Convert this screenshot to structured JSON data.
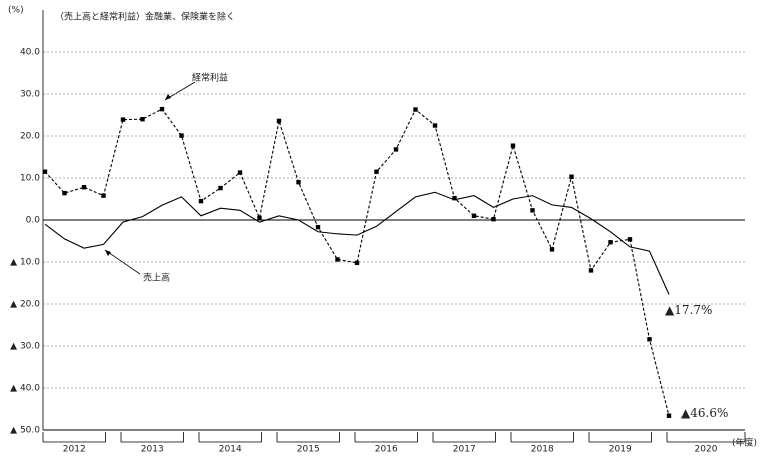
{
  "chart_data": {
    "type": "line",
    "subtitle": "（売上高と経常利益）金融業、保険業を除く",
    "y_unit": "(%)",
    "x_unit": "(年度)",
    "years": [
      "2012",
      "2013",
      "2014",
      "2015",
      "2016",
      "2017",
      "2018",
      "2019",
      "2020"
    ],
    "categories": [
      null,
      null,
      null,
      null,
      null,
      null,
      null,
      null,
      null,
      null,
      null,
      null,
      null,
      null,
      null,
      null,
      null,
      null,
      null,
      null,
      null,
      null,
      null,
      null,
      null,
      null,
      null,
      null,
      null,
      null,
      null,
      null,
      null
    ],
    "series": [
      {
        "name": "売上高",
        "color": "#000000",
        "line_style": "solid",
        "values": [
          -1.0,
          -4.5,
          -6.7,
          -5.8,
          -0.5,
          0.8,
          3.5,
          5.5,
          1.0,
          2.8,
          2.3,
          -0.5,
          1.0,
          0.0,
          -2.8,
          -3.3,
          -3.6,
          -1.5,
          2.0,
          5.5,
          6.6,
          4.8,
          5.8,
          3.0,
          5.0,
          5.8,
          3.6,
          3.0,
          0.3,
          -2.8,
          -6.4,
          -7.4,
          -17.7
        ],
        "value_labels": [
          null,
          null,
          null,
          null,
          null,
          null,
          null,
          null,
          null,
          null,
          null,
          null,
          null,
          null,
          null,
          null,
          null,
          null,
          null,
          null,
          null,
          null,
          null,
          null,
          null,
          null,
          null,
          null,
          null,
          null,
          null,
          null,
          "▲17.7%"
        ]
      },
      {
        "name": "経常利益",
        "color": "#000000",
        "line_style": "dashed",
        "marker": "square",
        "values": [
          11.5,
          6.4,
          7.8,
          5.8,
          23.9,
          24.0,
          26.4,
          20.1,
          4.5,
          7.6,
          11.3,
          0.5,
          23.6,
          9.0,
          -1.7,
          -9.4,
          -10.2,
          11.5,
          16.8,
          26.3,
          22.5,
          5.2,
          1.0,
          0.2,
          17.7,
          2.3,
          -7.0,
          10.3,
          -12.0,
          -5.3,
          -4.6,
          -28.4,
          -46.6
        ],
        "value_labels": [
          null,
          null,
          null,
          null,
          null,
          null,
          null,
          null,
          null,
          null,
          null,
          null,
          null,
          null,
          null,
          null,
          null,
          null,
          null,
          null,
          null,
          null,
          null,
          null,
          null,
          null,
          null,
          null,
          null,
          null,
          null,
          null,
          "▲46.6%"
        ]
      }
    ],
    "ylim": [
      -50,
      50
    ],
    "yticks": [
      {
        "value": 40,
        "label": "40.0"
      },
      {
        "value": 30,
        "label": "30.0"
      },
      {
        "value": 20,
        "label": "20.0"
      },
      {
        "value": 10,
        "label": "10.0"
      },
      {
        "value": 0,
        "label": "0.0"
      },
      {
        "value": -10,
        "label": "▲ 10.0"
      },
      {
        "value": -20,
        "label": "▲ 20.0"
      },
      {
        "value": -30,
        "label": "▲ 30.0"
      },
      {
        "value": -40,
        "label": "▲ 40.0"
      },
      {
        "value": -50,
        "label": "▲ 50.0"
      }
    ],
    "grid": true
  }
}
